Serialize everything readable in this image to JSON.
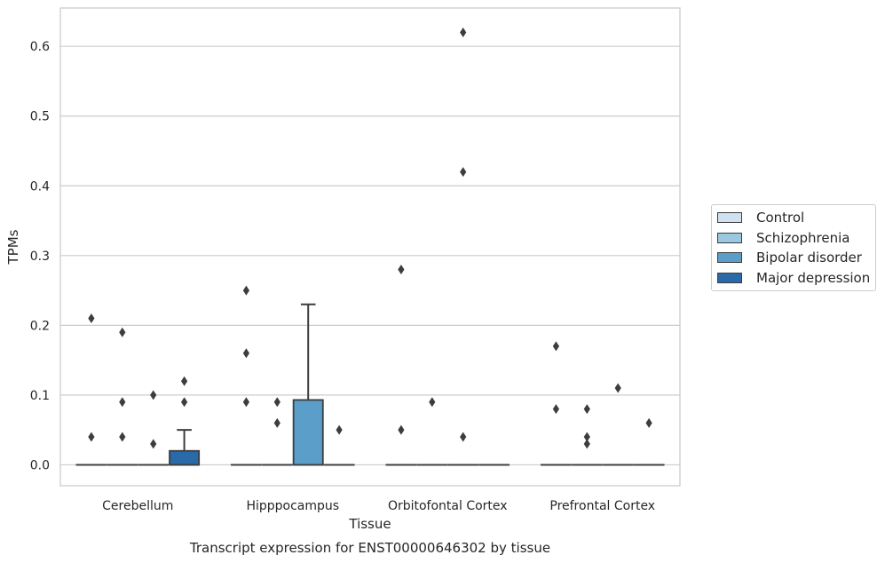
{
  "chart_data": {
    "type": "box",
    "title": "Transcript expression for ENST00000646302 by tissue",
    "xlabel": "Tissue",
    "ylabel": "TPMs",
    "ylim": [
      -0.03,
      0.655
    ],
    "yticks": [
      0.0,
      0.1,
      0.2,
      0.3,
      0.4,
      0.5,
      0.6
    ],
    "ytick_labels": [
      "0.0",
      "0.1",
      "0.2",
      "0.3",
      "0.4",
      "0.5",
      "0.6"
    ],
    "grid": true,
    "legend_position": "right",
    "categories": [
      "Cerebellum",
      "Hipppocampus",
      "Orbitofontal Cortex",
      "Prefrontal Cortex"
    ],
    "series": [
      {
        "name": "Control",
        "color": "#d0e1f2",
        "boxes": [
          {
            "category": "Cerebellum",
            "q1": 0.0,
            "median": 0.0,
            "q3": 0.0,
            "whisker_low": 0.0,
            "whisker_high": 0.0,
            "outliers": [
              0.21,
              0.04
            ]
          },
          {
            "category": "Hipppocampus",
            "q1": 0.0,
            "median": 0.0,
            "q3": 0.0,
            "whisker_low": 0.0,
            "whisker_high": 0.0,
            "outliers": [
              0.25,
              0.16,
              0.09
            ]
          },
          {
            "category": "Orbitofontal Cortex",
            "q1": 0.0,
            "median": 0.0,
            "q3": 0.0,
            "whisker_low": 0.0,
            "whisker_high": 0.0,
            "outliers": [
              0.28,
              0.05
            ]
          },
          {
            "category": "Prefrontal Cortex",
            "q1": 0.0,
            "median": 0.0,
            "q3": 0.0,
            "whisker_low": 0.0,
            "whisker_high": 0.0,
            "outliers": [
              0.17,
              0.08
            ]
          }
        ]
      },
      {
        "name": "Schizophrenia",
        "color": "#9ac8e0",
        "boxes": [
          {
            "category": "Cerebellum",
            "q1": 0.0,
            "median": 0.0,
            "q3": 0.0,
            "whisker_low": 0.0,
            "whisker_high": 0.0,
            "outliers": [
              0.19,
              0.09,
              0.04
            ]
          },
          {
            "category": "Hipppocampus",
            "q1": 0.0,
            "median": 0.0,
            "q3": 0.0,
            "whisker_low": 0.0,
            "whisker_high": 0.0,
            "outliers": [
              0.09,
              0.06
            ]
          },
          {
            "category": "Orbitofontal Cortex",
            "q1": 0.0,
            "median": 0.0,
            "q3": 0.0,
            "whisker_low": 0.0,
            "whisker_high": 0.0,
            "outliers": [
              0.09
            ]
          },
          {
            "category": "Prefrontal Cortex",
            "q1": 0.0,
            "median": 0.0,
            "q3": 0.0,
            "whisker_low": 0.0,
            "whisker_high": 0.0,
            "outliers": [
              0.08,
              0.04,
              0.03
            ]
          }
        ]
      },
      {
        "name": "Bipolar disorder",
        "color": "#5a9ec9",
        "boxes": [
          {
            "category": "Cerebellum",
            "q1": 0.0,
            "median": 0.0,
            "q3": 0.0,
            "whisker_low": 0.0,
            "whisker_high": 0.0,
            "outliers": [
              0.1,
              0.03
            ]
          },
          {
            "category": "Hipppocampus",
            "q1": 0.0,
            "median": 0.0,
            "q3": 0.093,
            "whisker_low": 0.0,
            "whisker_high": 0.23,
            "outliers": []
          },
          {
            "category": "Orbitofontal Cortex",
            "q1": 0.0,
            "median": 0.0,
            "q3": 0.0,
            "whisker_low": 0.0,
            "whisker_high": 0.0,
            "outliers": [
              0.62,
              0.42,
              0.04
            ]
          },
          {
            "category": "Prefrontal Cortex",
            "q1": 0.0,
            "median": 0.0,
            "q3": 0.0,
            "whisker_low": 0.0,
            "whisker_high": 0.0,
            "outliers": [
              0.11
            ]
          }
        ]
      },
      {
        "name": "Major depression",
        "color": "#2b6aa8",
        "boxes": [
          {
            "category": "Cerebellum",
            "q1": 0.0,
            "median": 0.0,
            "q3": 0.02,
            "whisker_low": 0.0,
            "whisker_high": 0.05,
            "outliers": [
              0.12,
              0.09
            ]
          },
          {
            "category": "Hipppocampus",
            "q1": 0.0,
            "median": 0.0,
            "q3": 0.0,
            "whisker_low": 0.0,
            "whisker_high": 0.0,
            "outliers": [
              0.05
            ]
          },
          {
            "category": "Orbitofontal Cortex",
            "q1": 0.0,
            "median": 0.0,
            "q3": 0.0,
            "whisker_low": 0.0,
            "whisker_high": 0.0,
            "outliers": []
          },
          {
            "category": "Prefrontal Cortex",
            "q1": 0.0,
            "median": 0.0,
            "q3": 0.0,
            "whisker_low": 0.0,
            "whisker_high": 0.0,
            "outliers": [
              0.06
            ]
          }
        ]
      }
    ]
  }
}
